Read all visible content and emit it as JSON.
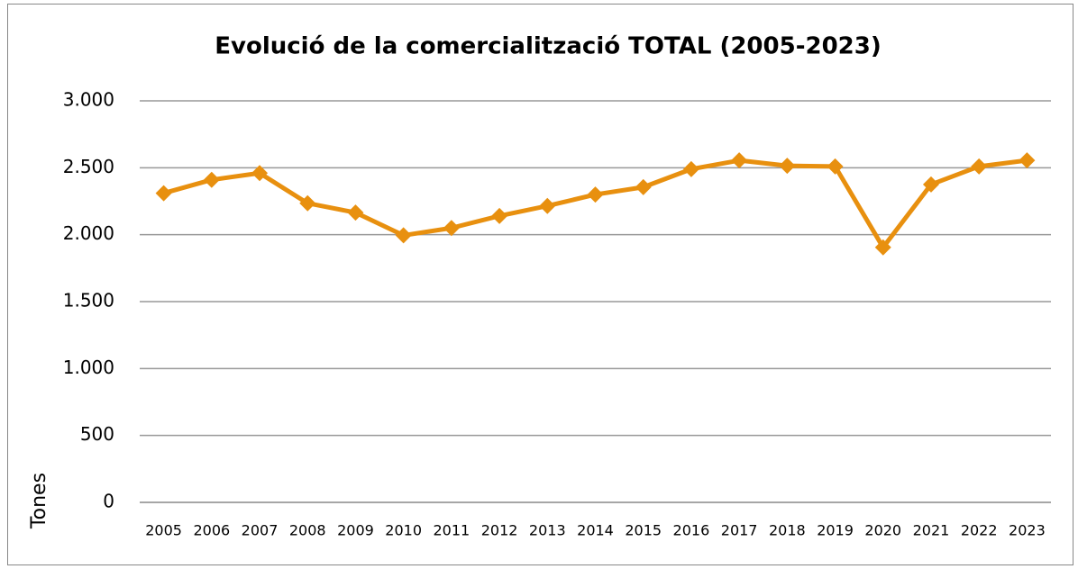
{
  "chart_data": {
    "type": "line",
    "title": "Evolució de la comercialització TOTAL (2005-2023)",
    "y_label": "Tones",
    "categories": [
      "2005",
      "2006",
      "2007",
      "2008",
      "2009",
      "2010",
      "2011",
      "2012",
      "2013",
      "2014",
      "2015",
      "2016",
      "2017",
      "2018",
      "2019",
      "2020",
      "2021",
      "2022",
      "2023"
    ],
    "series": [
      {
        "name": "TOTAL",
        "color": "#e8900f",
        "values": [
          2310,
          2410,
          2460,
          2235,
          2165,
          1995,
          2050,
          2140,
          2215,
          2300,
          2355,
          2490,
          2555,
          2515,
          2510,
          1905,
          2375,
          2510,
          2555
        ]
      }
    ],
    "ylim": [
      0,
      3000
    ],
    "yticks": [
      0,
      500,
      {
        "value": 1000,
        "label": "1.000"
      },
      {
        "value": 1500,
        "label": "1.500"
      },
      {
        "value": 2000,
        "label": "2.000"
      },
      {
        "value": 2500,
        "label": "2.500"
      },
      {
        "value": 3000,
        "label": "3.000"
      }
    ],
    "grid": true
  }
}
